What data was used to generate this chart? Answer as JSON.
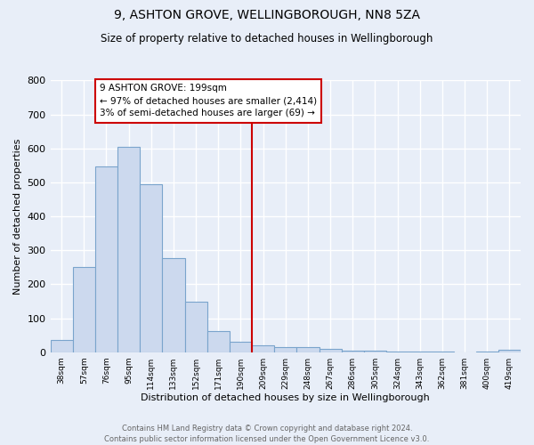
{
  "title": "9, ASHTON GROVE, WELLINGBOROUGH, NN8 5ZA",
  "subtitle": "Size of property relative to detached houses in Wellingborough",
  "xlabel": "Distribution of detached houses by size in Wellingborough",
  "ylabel": "Number of detached properties",
  "categories": [
    "38sqm",
    "57sqm",
    "76sqm",
    "95sqm",
    "114sqm",
    "133sqm",
    "152sqm",
    "171sqm",
    "190sqm",
    "209sqm",
    "229sqm",
    "248sqm",
    "267sqm",
    "286sqm",
    "305sqm",
    "324sqm",
    "343sqm",
    "362sqm",
    "381sqm",
    "400sqm",
    "419sqm"
  ],
  "values": [
    37,
    250,
    548,
    605,
    495,
    278,
    148,
    62,
    32,
    20,
    16,
    14,
    11,
    5,
    4,
    2,
    2,
    1,
    0,
    1,
    7
  ],
  "bar_color": "#ccd9ee",
  "bar_edge_color": "#7aa4cc",
  "vline_color": "#cc0000",
  "annotation_text": "9 ASHTON GROVE: 199sqm\n← 97% of detached houses are smaller (2,414)\n3% of semi-detached houses are larger (69) →",
  "annotation_box_color": "#cc0000",
  "background_color": "#e8eef8",
  "grid_color": "#ffffff",
  "footer_text": "Contains HM Land Registry data © Crown copyright and database right 2024.\nContains public sector information licensed under the Open Government Licence v3.0.",
  "ylim": [
    0,
    800
  ],
  "yticks": [
    0,
    100,
    200,
    300,
    400,
    500,
    600,
    700,
    800
  ]
}
